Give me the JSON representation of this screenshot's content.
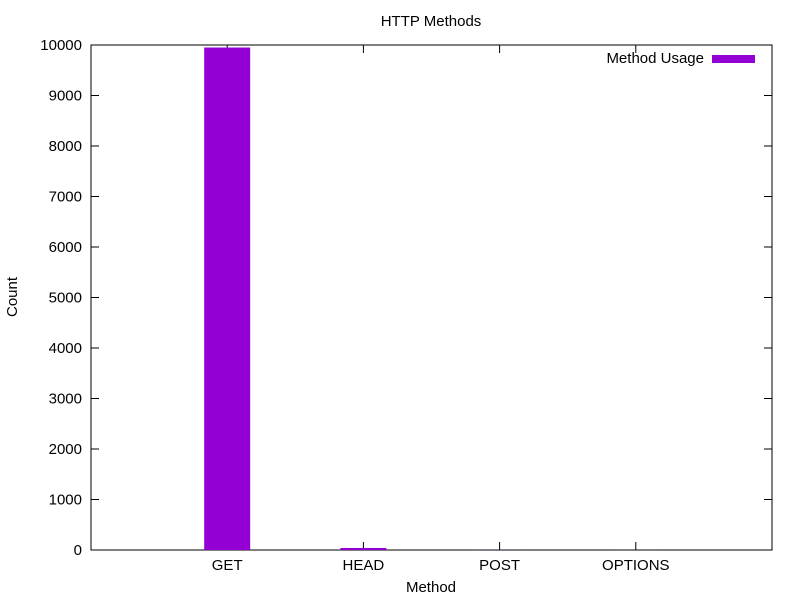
{
  "chart_data": {
    "type": "bar",
    "title": "HTTP Methods",
    "xlabel": "Method",
    "ylabel": "Count",
    "categories": [
      "GET",
      "HEAD",
      "POST",
      "OPTIONS"
    ],
    "series": [
      {
        "name": "Method Usage",
        "color": "#9400d3",
        "values": [
          9950,
          40,
          2,
          1
        ]
      }
    ],
    "ylim": [
      0,
      10000
    ],
    "yticks": [
      0,
      1000,
      2000,
      3000,
      4000,
      5000,
      6000,
      7000,
      8000,
      9000,
      10000
    ],
    "grid": false,
    "legend_position": "top-right"
  }
}
